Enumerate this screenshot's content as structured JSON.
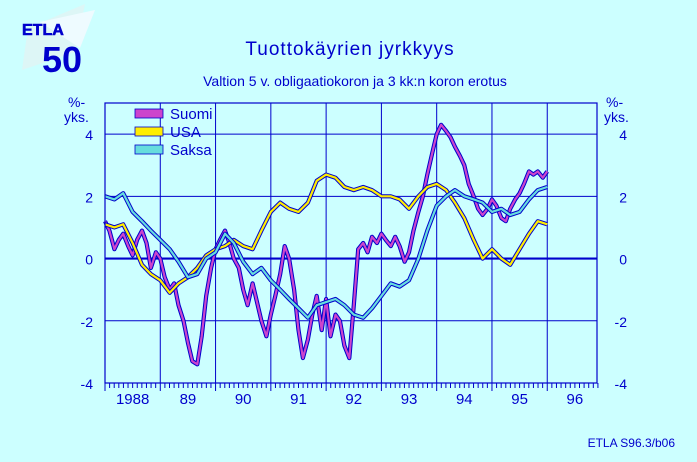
{
  "logo": {
    "text": "ETLA",
    "number": "50"
  },
  "colors": {
    "background": "#ccffff",
    "axis": "#0000cc",
    "grid": "#0000cc",
    "text": "#0000cc",
    "suomi": "#cc44cc",
    "usa": "#ffee00",
    "saksa": "#66dddd"
  },
  "chart_data": {
    "type": "line",
    "title": "Tuottokäyrien  jyrkkyys",
    "subtitle": "Valtion 5 v. obligaatiokoron ja 3 kk:n koron erotus",
    "ylabel_left": "%-\nyks.",
    "ylabel_right": "%-\nyks.",
    "ylim": [
      -4,
      5
    ],
    "yticks": [
      -4,
      -2,
      0,
      2,
      4
    ],
    "xlim": [
      1988.0,
      1996.9
    ],
    "xtick_labels": [
      "1988",
      "89",
      "90",
      "91",
      "92",
      "93",
      "94",
      "95",
      "96"
    ],
    "grid": true,
    "legend_position": "top-left",
    "source": "ETLA S96.3/b06",
    "series": [
      {
        "name": "Suomi",
        "color": "#cc44cc",
        "points": [
          [
            1988.0,
            1.2
          ],
          [
            1988.08,
            0.9
          ],
          [
            1988.17,
            0.3
          ],
          [
            1988.25,
            0.6
          ],
          [
            1988.33,
            0.8
          ],
          [
            1988.42,
            0.4
          ],
          [
            1988.5,
            0.1
          ],
          [
            1988.58,
            0.6
          ],
          [
            1988.67,
            0.9
          ],
          [
            1988.75,
            0.5
          ],
          [
            1988.83,
            -0.3
          ],
          [
            1988.92,
            0.2
          ],
          [
            1989.0,
            0.0
          ],
          [
            1989.08,
            -0.6
          ],
          [
            1989.17,
            -1.0
          ],
          [
            1989.25,
            -0.8
          ],
          [
            1989.33,
            -1.5
          ],
          [
            1989.42,
            -2.0
          ],
          [
            1989.5,
            -2.7
          ],
          [
            1989.58,
            -3.3
          ],
          [
            1989.67,
            -3.4
          ],
          [
            1989.75,
            -2.5
          ],
          [
            1989.83,
            -1.2
          ],
          [
            1989.92,
            -0.3
          ],
          [
            1990.0,
            0.3
          ],
          [
            1990.08,
            0.6
          ],
          [
            1990.17,
            0.9
          ],
          [
            1990.25,
            0.5
          ],
          [
            1990.33,
            0.0
          ],
          [
            1990.42,
            -0.3
          ],
          [
            1990.5,
            -1.0
          ],
          [
            1990.58,
            -1.5
          ],
          [
            1990.67,
            -0.8
          ],
          [
            1990.75,
            -1.4
          ],
          [
            1990.83,
            -2.0
          ],
          [
            1990.92,
            -2.5
          ],
          [
            1991.0,
            -1.8
          ],
          [
            1991.08,
            -1.2
          ],
          [
            1991.17,
            -0.5
          ],
          [
            1991.25,
            0.4
          ],
          [
            1991.33,
            0.0
          ],
          [
            1991.42,
            -1.0
          ],
          [
            1991.5,
            -2.3
          ],
          [
            1991.58,
            -3.2
          ],
          [
            1991.67,
            -2.6
          ],
          [
            1991.75,
            -1.8
          ],
          [
            1991.83,
            -1.2
          ],
          [
            1991.92,
            -2.3
          ],
          [
            1992.0,
            -1.3
          ],
          [
            1992.08,
            -2.5
          ],
          [
            1992.17,
            -1.8
          ],
          [
            1992.25,
            -2.0
          ],
          [
            1992.33,
            -2.8
          ],
          [
            1992.42,
            -3.2
          ],
          [
            1992.5,
            -1.5
          ],
          [
            1992.58,
            0.3
          ],
          [
            1992.67,
            0.5
          ],
          [
            1992.75,
            0.2
          ],
          [
            1992.83,
            0.7
          ],
          [
            1992.92,
            0.5
          ],
          [
            1993.0,
            0.8
          ],
          [
            1993.08,
            0.6
          ],
          [
            1993.17,
            0.4
          ],
          [
            1993.25,
            0.7
          ],
          [
            1993.33,
            0.4
          ],
          [
            1993.42,
            -0.1
          ],
          [
            1993.5,
            0.2
          ],
          [
            1993.58,
            0.9
          ],
          [
            1993.67,
            1.5
          ],
          [
            1993.75,
            2.0
          ],
          [
            1993.83,
            2.7
          ],
          [
            1993.92,
            3.4
          ],
          [
            1994.0,
            4.0
          ],
          [
            1994.08,
            4.3
          ],
          [
            1994.17,
            4.1
          ],
          [
            1994.25,
            3.9
          ],
          [
            1994.33,
            3.6
          ],
          [
            1994.42,
            3.3
          ],
          [
            1994.5,
            3.0
          ],
          [
            1994.58,
            2.4
          ],
          [
            1994.67,
            2.0
          ],
          [
            1994.75,
            1.6
          ],
          [
            1994.83,
            1.4
          ],
          [
            1994.92,
            1.6
          ],
          [
            1995.0,
            1.9
          ],
          [
            1995.08,
            1.7
          ],
          [
            1995.17,
            1.3
          ],
          [
            1995.25,
            1.2
          ],
          [
            1995.33,
            1.6
          ],
          [
            1995.42,
            1.9
          ],
          [
            1995.5,
            2.1
          ],
          [
            1995.58,
            2.4
          ],
          [
            1995.67,
            2.8
          ],
          [
            1995.75,
            2.7
          ],
          [
            1995.83,
            2.8
          ],
          [
            1995.92,
            2.6
          ],
          [
            1996.0,
            2.8
          ]
        ]
      },
      {
        "name": "USA",
        "color": "#ffee00",
        "points": [
          [
            1988.0,
            1.1
          ],
          [
            1988.17,
            1.0
          ],
          [
            1988.33,
            1.1
          ],
          [
            1988.5,
            0.5
          ],
          [
            1988.67,
            -0.2
          ],
          [
            1988.83,
            -0.5
          ],
          [
            1989.0,
            -0.7
          ],
          [
            1989.17,
            -1.1
          ],
          [
            1989.33,
            -0.8
          ],
          [
            1989.5,
            -0.6
          ],
          [
            1989.67,
            -0.3
          ],
          [
            1989.83,
            0.1
          ],
          [
            1990.0,
            0.3
          ],
          [
            1990.17,
            0.4
          ],
          [
            1990.33,
            0.6
          ],
          [
            1990.5,
            0.4
          ],
          [
            1990.67,
            0.3
          ],
          [
            1990.83,
            0.9
          ],
          [
            1991.0,
            1.5
          ],
          [
            1991.17,
            1.8
          ],
          [
            1991.33,
            1.6
          ],
          [
            1991.5,
            1.5
          ],
          [
            1991.67,
            1.8
          ],
          [
            1991.83,
            2.5
          ],
          [
            1992.0,
            2.7
          ],
          [
            1992.17,
            2.6
          ],
          [
            1992.33,
            2.3
          ],
          [
            1992.5,
            2.2
          ],
          [
            1992.67,
            2.3
          ],
          [
            1992.83,
            2.2
          ],
          [
            1993.0,
            2.0
          ],
          [
            1993.17,
            2.0
          ],
          [
            1993.33,
            1.9
          ],
          [
            1993.5,
            1.6
          ],
          [
            1993.67,
            2.0
          ],
          [
            1993.83,
            2.3
          ],
          [
            1994.0,
            2.4
          ],
          [
            1994.17,
            2.2
          ],
          [
            1994.33,
            1.8
          ],
          [
            1994.5,
            1.3
          ],
          [
            1994.67,
            0.6
          ],
          [
            1994.83,
            0.0
          ],
          [
            1995.0,
            0.3
          ],
          [
            1995.17,
            0.0
          ],
          [
            1995.33,
            -0.2
          ],
          [
            1995.5,
            0.3
          ],
          [
            1995.67,
            0.8
          ],
          [
            1995.83,
            1.2
          ],
          [
            1996.0,
            1.1
          ]
        ]
      },
      {
        "name": "Saksa",
        "color": "#66dddd",
        "points": [
          [
            1988.0,
            2.0
          ],
          [
            1988.17,
            1.9
          ],
          [
            1988.33,
            2.1
          ],
          [
            1988.5,
            1.5
          ],
          [
            1988.67,
            1.2
          ],
          [
            1988.83,
            0.9
          ],
          [
            1989.0,
            0.6
          ],
          [
            1989.17,
            0.3
          ],
          [
            1989.33,
            -0.1
          ],
          [
            1989.5,
            -0.6
          ],
          [
            1989.67,
            -0.5
          ],
          [
            1989.83,
            0.0
          ],
          [
            1990.0,
            0.2
          ],
          [
            1990.17,
            0.8
          ],
          [
            1990.33,
            0.5
          ],
          [
            1990.5,
            -0.1
          ],
          [
            1990.67,
            -0.5
          ],
          [
            1990.83,
            -0.3
          ],
          [
            1991.0,
            -0.7
          ],
          [
            1991.17,
            -1.0
          ],
          [
            1991.33,
            -1.3
          ],
          [
            1991.5,
            -1.6
          ],
          [
            1991.67,
            -1.9
          ],
          [
            1991.83,
            -1.5
          ],
          [
            1992.0,
            -1.4
          ],
          [
            1992.17,
            -1.3
          ],
          [
            1992.33,
            -1.5
          ],
          [
            1992.5,
            -1.8
          ],
          [
            1992.67,
            -1.9
          ],
          [
            1992.83,
            -1.6
          ],
          [
            1993.0,
            -1.2
          ],
          [
            1993.17,
            -0.8
          ],
          [
            1993.33,
            -0.9
          ],
          [
            1993.5,
            -0.7
          ],
          [
            1993.67,
            0.0
          ],
          [
            1993.83,
            0.9
          ],
          [
            1994.0,
            1.7
          ],
          [
            1994.17,
            2.0
          ],
          [
            1994.33,
            2.2
          ],
          [
            1994.5,
            2.0
          ],
          [
            1994.67,
            1.9
          ],
          [
            1994.83,
            1.8
          ],
          [
            1995.0,
            1.5
          ],
          [
            1995.17,
            1.6
          ],
          [
            1995.33,
            1.4
          ],
          [
            1995.5,
            1.5
          ],
          [
            1995.67,
            1.9
          ],
          [
            1995.83,
            2.2
          ],
          [
            1996.0,
            2.3
          ]
        ]
      }
    ]
  }
}
